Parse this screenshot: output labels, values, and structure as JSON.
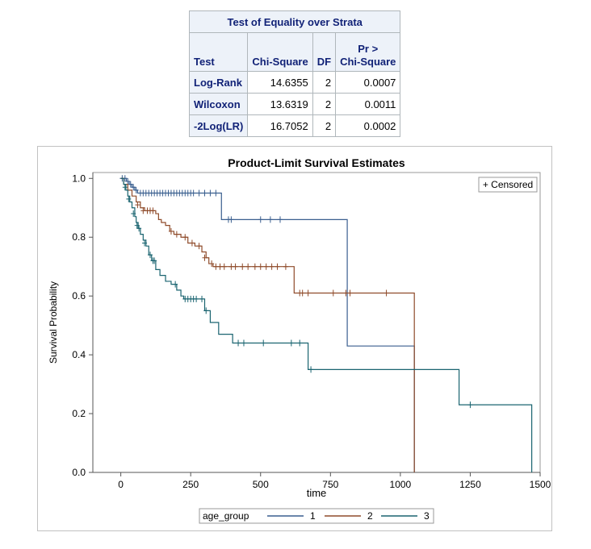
{
  "stats_table": {
    "caption": "Test of Equality over Strata",
    "headers": [
      "Test",
      "Chi-Square",
      "DF",
      "Pr >",
      "Chi-Square"
    ],
    "rows": [
      {
        "test": "Log-Rank",
        "chisq": "14.6355",
        "df": "2",
        "p": "0.0007"
      },
      {
        "test": "Wilcoxon",
        "chisq": "13.6319",
        "df": "2",
        "p": "0.0011"
      },
      {
        "test": "-2Log(LR)",
        "chisq": "16.7052",
        "df": "2",
        "p": "0.0002"
      }
    ]
  },
  "colors": {
    "header_bg": "#edf2f9",
    "header_text": "#112277",
    "series_1": "#3a5f8f",
    "series_2": "#8f4b2a",
    "series_3": "#1a6470"
  },
  "chart_data": {
    "type": "line",
    "title": "Product-Limit Survival Estimates",
    "xlabel": "time",
    "ylabel": "Survival Probability",
    "xlim": [
      -100,
      1500
    ],
    "ylim": [
      0,
      1.02
    ],
    "xticks": [
      0,
      250,
      500,
      750,
      1000,
      1250,
      1500
    ],
    "yticks": [
      0.0,
      0.2,
      0.4,
      0.6,
      0.8,
      1.0
    ],
    "xtick_labels": [
      "0",
      "250",
      "500",
      "750",
      "1000",
      "1250",
      "1500"
    ],
    "ytick_labels": [
      "0.0",
      "0.2",
      "0.4",
      "0.6",
      "0.8",
      "1.0"
    ],
    "grid": false,
    "inset_legend": "+ Censored",
    "legend": {
      "title": "age_group",
      "placement": "bottom"
    },
    "series": [
      {
        "name": "1",
        "color": "#3a5f8f",
        "steps": [
          [
            0,
            1.0
          ],
          [
            20,
            0.99
          ],
          [
            30,
            0.98
          ],
          [
            40,
            0.97
          ],
          [
            50,
            0.96
          ],
          [
            60,
            0.95
          ],
          [
            360,
            0.86
          ],
          [
            810,
            0.43
          ],
          [
            1050,
            0.0
          ]
        ],
        "censored": [
          [
            5,
            1.0
          ],
          [
            15,
            1.0
          ],
          [
            25,
            0.99
          ],
          [
            35,
            0.98
          ],
          [
            45,
            0.97
          ],
          [
            55,
            0.96
          ],
          [
            70,
            0.95
          ],
          [
            80,
            0.95
          ],
          [
            90,
            0.95
          ],
          [
            100,
            0.95
          ],
          [
            110,
            0.95
          ],
          [
            120,
            0.95
          ],
          [
            130,
            0.95
          ],
          [
            140,
            0.95
          ],
          [
            150,
            0.95
          ],
          [
            160,
            0.95
          ],
          [
            170,
            0.95
          ],
          [
            180,
            0.95
          ],
          [
            190,
            0.95
          ],
          [
            200,
            0.95
          ],
          [
            210,
            0.95
          ],
          [
            220,
            0.95
          ],
          [
            230,
            0.95
          ],
          [
            240,
            0.95
          ],
          [
            250,
            0.95
          ],
          [
            260,
            0.95
          ],
          [
            280,
            0.95
          ],
          [
            300,
            0.95
          ],
          [
            320,
            0.95
          ],
          [
            340,
            0.95
          ],
          [
            385,
            0.86
          ],
          [
            395,
            0.86
          ],
          [
            500,
            0.86
          ],
          [
            535,
            0.86
          ],
          [
            570,
            0.86
          ]
        ]
      },
      {
        "name": "2",
        "color": "#8f4b2a",
        "steps": [
          [
            0,
            1.0
          ],
          [
            10,
            0.98
          ],
          [
            25,
            0.96
          ],
          [
            40,
            0.94
          ],
          [
            55,
            0.92
          ],
          [
            70,
            0.9
          ],
          [
            85,
            0.89
          ],
          [
            125,
            0.88
          ],
          [
            135,
            0.86
          ],
          [
            145,
            0.85
          ],
          [
            160,
            0.84
          ],
          [
            175,
            0.82
          ],
          [
            190,
            0.81
          ],
          [
            215,
            0.8
          ],
          [
            240,
            0.78
          ],
          [
            265,
            0.77
          ],
          [
            290,
            0.75
          ],
          [
            305,
            0.73
          ],
          [
            315,
            0.71
          ],
          [
            330,
            0.7
          ],
          [
            620,
            0.61
          ],
          [
            1050,
            0.0
          ]
        ],
        "censored": [
          [
            60,
            0.91
          ],
          [
            80,
            0.89
          ],
          [
            95,
            0.89
          ],
          [
            105,
            0.89
          ],
          [
            115,
            0.89
          ],
          [
            180,
            0.82
          ],
          [
            200,
            0.81
          ],
          [
            230,
            0.8
          ],
          [
            255,
            0.78
          ],
          [
            280,
            0.77
          ],
          [
            300,
            0.73
          ],
          [
            325,
            0.71
          ],
          [
            340,
            0.7
          ],
          [
            355,
            0.7
          ],
          [
            370,
            0.7
          ],
          [
            395,
            0.7
          ],
          [
            410,
            0.7
          ],
          [
            435,
            0.7
          ],
          [
            455,
            0.7
          ],
          [
            480,
            0.7
          ],
          [
            500,
            0.7
          ],
          [
            520,
            0.7
          ],
          [
            540,
            0.7
          ],
          [
            560,
            0.7
          ],
          [
            590,
            0.7
          ],
          [
            640,
            0.61
          ],
          [
            650,
            0.61
          ],
          [
            670,
            0.61
          ],
          [
            760,
            0.61
          ],
          [
            805,
            0.61
          ],
          [
            820,
            0.61
          ],
          [
            950,
            0.61
          ]
        ]
      },
      {
        "name": "3",
        "color": "#1a6470",
        "steps": [
          [
            0,
            1.0
          ],
          [
            10,
            0.98
          ],
          [
            18,
            0.96
          ],
          [
            25,
            0.94
          ],
          [
            32,
            0.92
          ],
          [
            40,
            0.9
          ],
          [
            50,
            0.87
          ],
          [
            55,
            0.85
          ],
          [
            62,
            0.83
          ],
          [
            70,
            0.81
          ],
          [
            80,
            0.79
          ],
          [
            90,
            0.77
          ],
          [
            100,
            0.74
          ],
          [
            110,
            0.72
          ],
          [
            125,
            0.69
          ],
          [
            140,
            0.67
          ],
          [
            160,
            0.65
          ],
          [
            180,
            0.64
          ],
          [
            200,
            0.62
          ],
          [
            215,
            0.6
          ],
          [
            225,
            0.59
          ],
          [
            300,
            0.55
          ],
          [
            320,
            0.51
          ],
          [
            350,
            0.47
          ],
          [
            400,
            0.44
          ],
          [
            670,
            0.35
          ],
          [
            1210,
            0.23
          ],
          [
            1470,
            0.0
          ]
        ],
        "censored": [
          [
            15,
            0.97
          ],
          [
            28,
            0.93
          ],
          [
            45,
            0.88
          ],
          [
            58,
            0.84
          ],
          [
            65,
            0.83
          ],
          [
            85,
            0.78
          ],
          [
            105,
            0.74
          ],
          [
            115,
            0.72
          ],
          [
            120,
            0.72
          ],
          [
            195,
            0.64
          ],
          [
            230,
            0.59
          ],
          [
            240,
            0.59
          ],
          [
            250,
            0.59
          ],
          [
            260,
            0.59
          ],
          [
            270,
            0.59
          ],
          [
            290,
            0.59
          ],
          [
            305,
            0.55
          ],
          [
            420,
            0.44
          ],
          [
            440,
            0.44
          ],
          [
            510,
            0.44
          ],
          [
            610,
            0.44
          ],
          [
            640,
            0.44
          ],
          [
            680,
            0.35
          ],
          [
            1250,
            0.23
          ]
        ]
      }
    ]
  }
}
